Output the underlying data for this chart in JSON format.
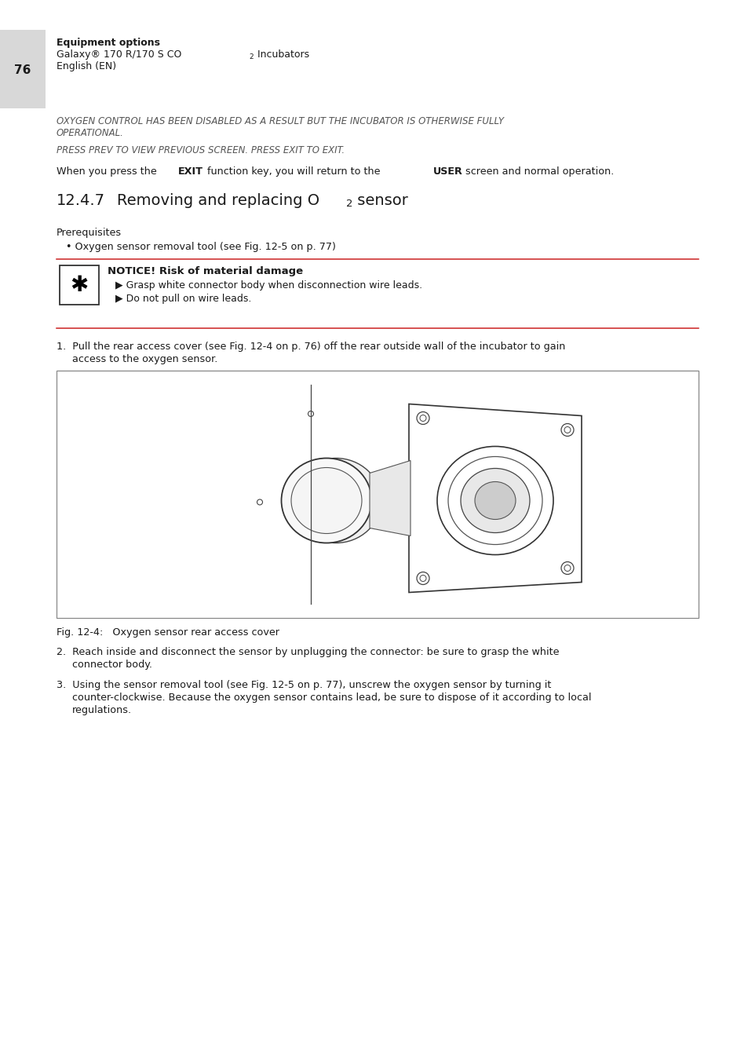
{
  "page_number": "76",
  "header_bold": "Equipment options",
  "header_line3": "English (EN)",
  "italic_para1_line1": "OXYGEN CONTROL HAS BEEN DISABLED AS A RESULT BUT THE INCUBATOR IS OTHERWISE FULLY",
  "italic_para1_line2": "OPERATIONAL.",
  "italic_para2": "PRESS PREV TO VIEW PREVIOUS SCREEN. PRESS EXIT TO EXIT.",
  "prereq_label": "Prerequisites",
  "prereq_bullet": "• Oxygen sensor removal tool (see Fig. 12-5 on p. 77)",
  "notice_title": "NOTICE! Risk of material damage",
  "notice_b1": "▶ Grasp white connector body when disconnection wire leads.",
  "notice_b2": "▶ Do not pull on wire leads.",
  "step1a": "1.  Pull the rear access cover (see Fig. 12-4 on p. 76) off the rear outside wall of the incubator to gain",
  "step1b": "access to the oxygen sensor.",
  "fig_caption": "Fig. 12-4:   Oxygen sensor rear access cover",
  "step2a": "2.  Reach inside and disconnect the sensor by unplugging the connector: be sure to grasp the white",
  "step2b": "connector body.",
  "step3a": "3.  Using the sensor removal tool (see Fig. 12-5 on p. 77), unscrew the oxygen sensor by turning it",
  "step3b": "counter-clockwise. Because the oxygen sensor contains lead, be sure to dispose of it according to local",
  "step3c": "regulations.",
  "bg_color": "#ffffff",
  "text_color": "#1a1a1a",
  "header_gray": "#d8d8d8",
  "red_line_color": "#cc2222",
  "italic_color": "#555555",
  "notice_icon_color": "#000000"
}
